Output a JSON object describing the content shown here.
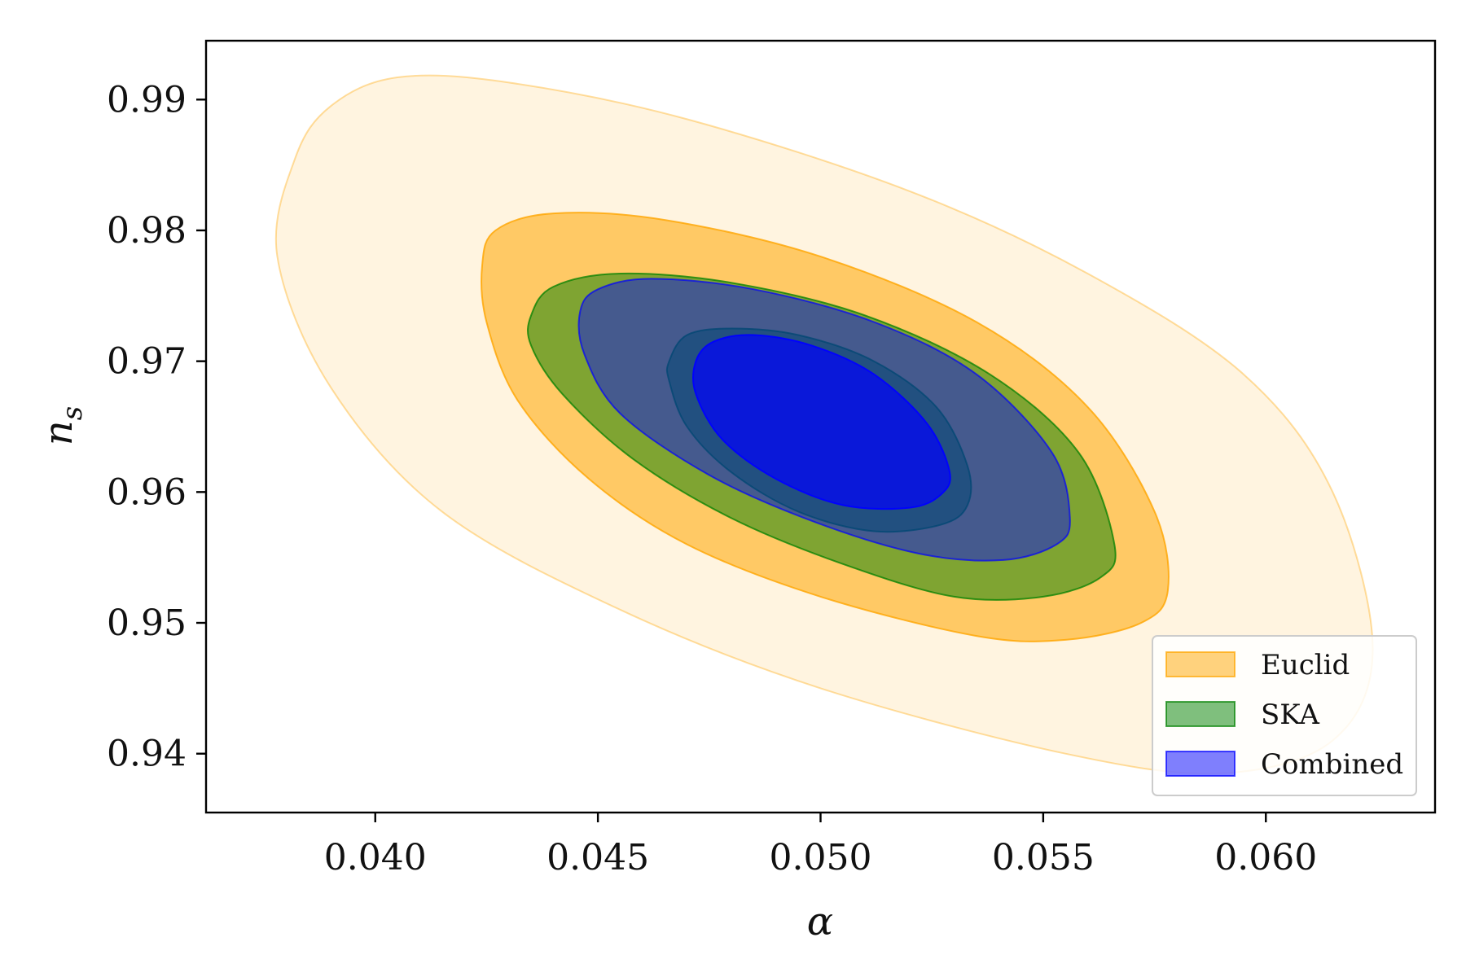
{
  "chart_data": {
    "type": "contour",
    "title": "",
    "xlabel": "α",
    "ylabel": "n",
    "ylabel_subscript": "s",
    "xlim": [
      0.0362,
      0.0638
    ],
    "ylim": [
      0.9355,
      0.9945
    ],
    "xticks": [
      0.04,
      0.045,
      0.05,
      0.055,
      0.06
    ],
    "xtick_labels": [
      "0.040",
      "0.045",
      "0.050",
      "0.055",
      "0.060"
    ],
    "yticks": [
      0.94,
      0.95,
      0.96,
      0.97,
      0.98,
      0.99
    ],
    "ytick_labels": [
      "0.94",
      "0.95",
      "0.96",
      "0.97",
      "0.98",
      "0.99"
    ],
    "grid": false,
    "legend_position": "lower-right",
    "series": [
      {
        "name": "Euclid",
        "color": "#FFA500",
        "levels": [
          {
            "sigma": 2,
            "opacity": 0.12,
            "contour": [
              [
                0.0382,
                0.9855
              ],
              [
                0.039,
                0.9895
              ],
              [
                0.0405,
                0.9917
              ],
              [
                0.043,
                0.9913
              ],
              [
                0.047,
                0.9885
              ],
              [
                0.052,
                0.983
              ],
              [
                0.056,
                0.9767
              ],
              [
                0.0595,
                0.969
              ],
              [
                0.0615,
                0.96
              ],
              [
                0.0624,
                0.948
              ],
              [
                0.0615,
                0.941
              ],
              [
                0.059,
                0.9385
              ],
              [
                0.0555,
                0.94
              ],
              [
                0.05,
                0.945
              ],
              [
                0.0455,
                0.951
              ],
              [
                0.0415,
                0.9585
              ],
              [
                0.039,
                0.968
              ],
              [
                0.0378,
                0.978
              ]
            ]
          },
          {
            "sigma": 1,
            "opacity": 0.55,
            "contour": [
              [
                0.0424,
                0.9773
              ],
              [
                0.0427,
                0.98
              ],
              [
                0.044,
                0.9813
              ],
              [
                0.0465,
                0.9808
              ],
              [
                0.05,
                0.978
              ],
              [
                0.0535,
                0.973
              ],
              [
                0.056,
                0.9665
              ],
              [
                0.0575,
                0.9585
              ],
              [
                0.0578,
                0.9525
              ],
              [
                0.0572,
                0.95
              ],
              [
                0.0555,
                0.9487
              ],
              [
                0.0535,
                0.949
              ],
              [
                0.05,
                0.952
              ],
              [
                0.047,
                0.956
              ],
              [
                0.0448,
                0.961
              ],
              [
                0.0432,
                0.967
              ],
              [
                0.0425,
                0.973
              ]
            ]
          }
        ]
      },
      {
        "name": "SKA",
        "color": "#008000",
        "levels": [
          {
            "sigma": 2,
            "opacity": 0.5,
            "contour": [
              [
                0.0435,
                0.9735
              ],
              [
                0.044,
                0.9757
              ],
              [
                0.0455,
                0.9767
              ],
              [
                0.048,
                0.976
              ],
              [
                0.051,
                0.9735
              ],
              [
                0.0538,
                0.969
              ],
              [
                0.0558,
                0.963
              ],
              [
                0.0566,
                0.956
              ],
              [
                0.0563,
                0.9535
              ],
              [
                0.055,
                0.952
              ],
              [
                0.053,
                0.952
              ],
              [
                0.0505,
                0.9545
              ],
              [
                0.048,
                0.958
              ],
              [
                0.0458,
                0.9625
              ],
              [
                0.0442,
                0.9675
              ],
              [
                0.0435,
                0.9712
              ]
            ]
          },
          {
            "sigma": 1,
            "opacity": 0.5,
            "contour": [
              [
                0.0466,
                0.97
              ],
              [
                0.047,
                0.972
              ],
              [
                0.048,
                0.9725
              ],
              [
                0.0495,
                0.972
              ],
              [
                0.0512,
                0.97
              ],
              [
                0.0526,
                0.9665
              ],
              [
                0.0533,
                0.962
              ],
              [
                0.0533,
                0.959
              ],
              [
                0.0527,
                0.9575
              ],
              [
                0.0512,
                0.957
              ],
              [
                0.0495,
                0.9585
              ],
              [
                0.048,
                0.9615
              ],
              [
                0.047,
                0.965
              ],
              [
                0.0466,
                0.9685
              ]
            ]
          }
        ]
      },
      {
        "name": "Combined",
        "color": "#0000FF",
        "levels": [
          {
            "sigma": 2,
            "opacity": 0.45,
            "contour": [
              [
                0.0446,
                0.9738
              ],
              [
                0.045,
                0.9755
              ],
              [
                0.0462,
                0.9763
              ],
              [
                0.0485,
                0.9755
              ],
              [
                0.0512,
                0.973
              ],
              [
                0.0535,
                0.969
              ],
              [
                0.0552,
                0.963
              ],
              [
                0.0556,
                0.958
              ],
              [
                0.0553,
                0.956
              ],
              [
                0.0541,
                0.9548
              ],
              [
                0.0522,
                0.9553
              ],
              [
                0.0498,
                0.9578
              ],
              [
                0.0475,
                0.9613
              ],
              [
                0.0455,
                0.966
              ],
              [
                0.0447,
                0.9705
              ]
            ]
          },
          {
            "sigma": 1,
            "opacity": 0.7,
            "contour": [
              [
                0.0472,
                0.97
              ],
              [
                0.0476,
                0.9715
              ],
              [
                0.0485,
                0.972
              ],
              [
                0.0498,
                0.9712
              ],
              [
                0.0512,
                0.969
              ],
              [
                0.0524,
                0.9652
              ],
              [
                0.0529,
                0.9615
              ],
              [
                0.0527,
                0.9598
              ],
              [
                0.052,
                0.9588
              ],
              [
                0.0505,
                0.959
              ],
              [
                0.049,
                0.961
              ],
              [
                0.0478,
                0.964
              ],
              [
                0.0472,
                0.9675
              ]
            ]
          }
        ]
      }
    ]
  }
}
